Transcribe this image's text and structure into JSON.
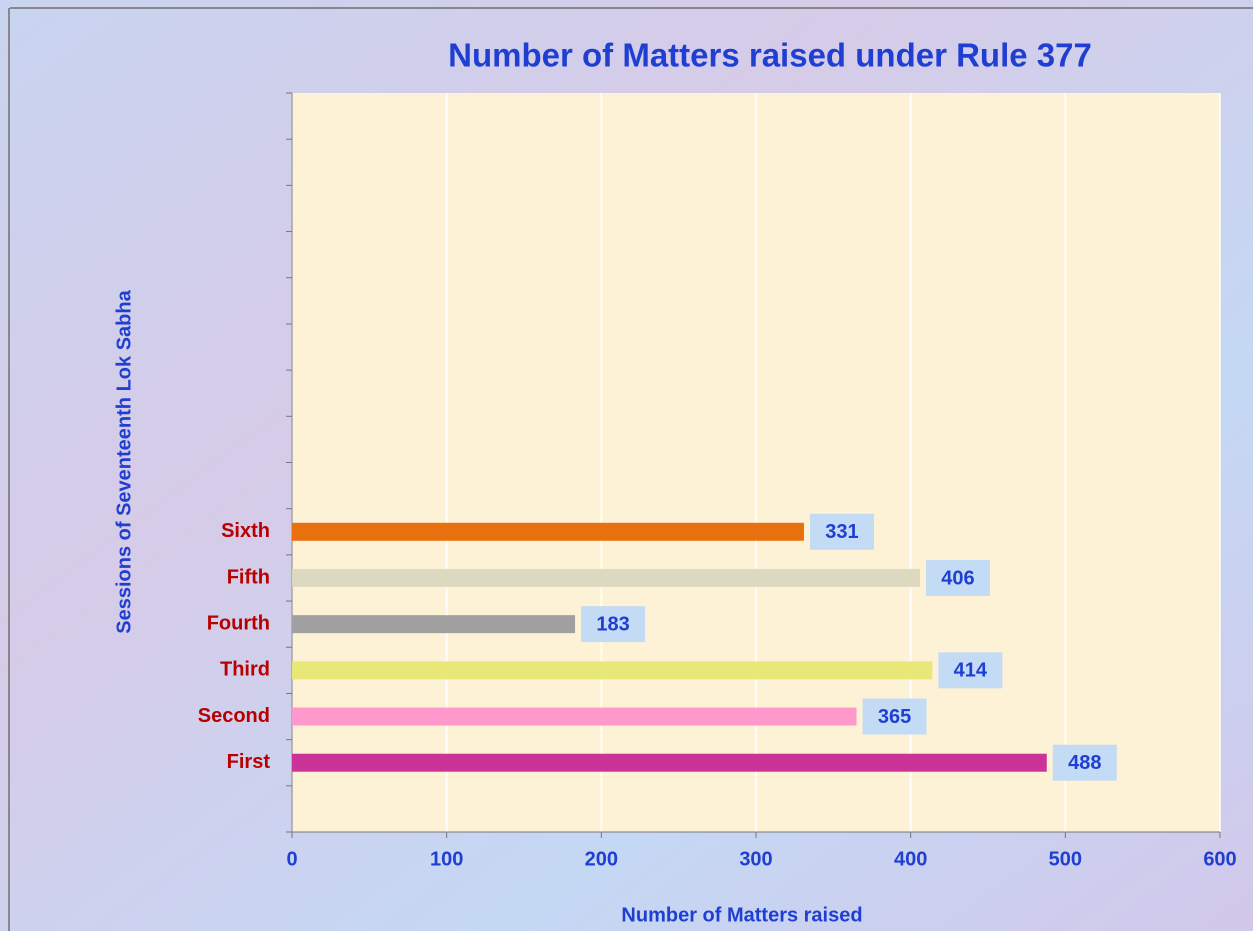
{
  "chart_data": {
    "type": "bar",
    "orientation": "horizontal",
    "title": "Number of Matters raised under Rule 377",
    "x_label": "Number of Matters raised",
    "y_label": "Sessions of Seventeenth Lok Sabha",
    "categories": [
      null,
      "First",
      "Second",
      "Third",
      "Fourth",
      "Fifth",
      "Sixth",
      null,
      null,
      null,
      null,
      null,
      null,
      null,
      null,
      null
    ],
    "values": [
      null,
      488,
      365,
      414,
      183,
      406,
      331,
      null,
      null,
      null,
      null,
      null,
      null,
      null,
      null,
      null
    ],
    "colors": [
      null,
      "#cc3399",
      "#ff99cc",
      "#e8e878",
      "#a0a0a0",
      "#ddd8c0",
      "#e8700e",
      null,
      null,
      null,
      null,
      null,
      null,
      null,
      null,
      null
    ],
    "xlim": [
      0,
      600
    ],
    "xticks": [
      0,
      100,
      200,
      300,
      400,
      500,
      600
    ],
    "grid": true
  }
}
